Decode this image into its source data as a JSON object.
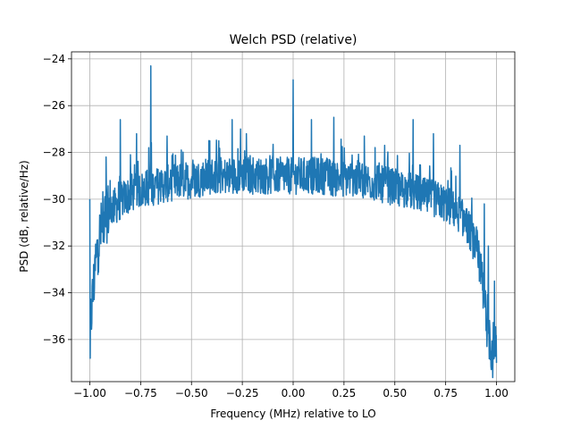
{
  "chart_data": {
    "type": "line",
    "title": "Welch PSD (relative)",
    "xlabel": "Frequency (MHz) relative to LO",
    "ylabel": "PSD (dB, relative/Hz)",
    "xlim": [
      -1.09,
      1.09
    ],
    "ylim": [
      -37.8,
      -23.7
    ],
    "grid": true,
    "xticks": [
      -1.0,
      -0.75,
      -0.5,
      -0.25,
      0.0,
      0.25,
      0.5,
      0.75,
      1.0
    ],
    "xtick_labels": [
      "−1.00",
      "−0.75",
      "−0.50",
      "−0.25",
      "0.00",
      "0.25",
      "0.50",
      "0.75",
      "1.00"
    ],
    "yticks": [
      -36,
      -34,
      -32,
      -30,
      -28,
      -26,
      -24
    ],
    "ytick_labels": [
      "−36",
      "−34",
      "−32",
      "−30",
      "−28",
      "−26",
      "−24"
    ],
    "color": "#1f77b4",
    "series": [
      {
        "x": [
          -1.0,
          -0.99,
          -0.98,
          -0.97,
          -0.96,
          -0.95,
          -0.94,
          -0.93,
          -0.92,
          -0.91,
          -0.9,
          -0.88,
          -0.86,
          -0.84,
          -0.82,
          -0.8,
          -0.78,
          -0.76,
          -0.74,
          -0.72,
          -0.7,
          -0.65,
          -0.6,
          -0.55,
          -0.5,
          -0.45,
          -0.4,
          -0.35,
          -0.3,
          -0.25,
          -0.2,
          -0.15,
          -0.1,
          -0.05,
          0.0,
          0.05,
          0.1,
          0.15,
          0.2,
          0.25,
          0.3,
          0.35,
          0.4,
          0.45,
          0.5,
          0.55,
          0.6,
          0.65,
          0.7,
          0.75,
          0.8,
          0.85,
          0.88,
          0.9,
          0.91,
          0.92,
          0.93,
          0.94,
          0.95,
          0.96,
          0.97,
          0.98,
          0.99,
          1.0
        ],
        "y": [
          -35.8,
          -34.6,
          -33.6,
          -32.6,
          -32.0,
          -31.5,
          -31.2,
          -30.9,
          -30.7,
          -30.5,
          -30.4,
          -30.3,
          -30.2,
          -30.0,
          -29.9,
          -29.8,
          -29.7,
          -29.6,
          -29.6,
          -29.5,
          -29.5,
          -29.4,
          -29.3,
          -29.2,
          -29.2,
          -29.1,
          -29.0,
          -29.0,
          -29.0,
          -28.9,
          -29.0,
          -29.0,
          -29.0,
          -29.0,
          -29.0,
          -29.0,
          -29.0,
          -29.0,
          -29.1,
          -29.1,
          -29.1,
          -29.2,
          -29.3,
          -29.4,
          -29.5,
          -29.6,
          -29.7,
          -29.9,
          -30.0,
          -30.2,
          -30.5,
          -31.0,
          -31.6,
          -32.3,
          -32.8,
          -33.3,
          -33.8,
          -34.3,
          -34.9,
          -35.5,
          -36.0,
          -36.4,
          -36.6,
          -36.8
        ]
      }
    ],
    "spikes": [
      {
        "x": -1.0,
        "y": -30.0
      },
      {
        "x": -0.998,
        "y": -36.8
      },
      {
        "x": -0.98,
        "y": -34.0
      },
      {
        "x": -0.92,
        "y": -28.2
      },
      {
        "x": -0.9,
        "y": -29.2
      },
      {
        "x": -0.85,
        "y": -26.6
      },
      {
        "x": -0.8,
        "y": -28.1
      },
      {
        "x": -0.77,
        "y": -27.2
      },
      {
        "x": -0.71,
        "y": -27.8
      },
      {
        "x": -0.7,
        "y": -24.3
      },
      {
        "x": -0.62,
        "y": -27.3
      },
      {
        "x": -0.55,
        "y": -27.9
      },
      {
        "x": -0.41,
        "y": -27.5
      },
      {
        "x": -0.3,
        "y": -26.6
      },
      {
        "x": -0.23,
        "y": -27.2
      },
      {
        "x": 0.0,
        "y": -24.9
      },
      {
        "x": 0.09,
        "y": -26.6
      },
      {
        "x": 0.2,
        "y": -26.5
      },
      {
        "x": 0.35,
        "y": -27.3
      },
      {
        "x": 0.45,
        "y": -27.7
      },
      {
        "x": 0.59,
        "y": -26.6
      },
      {
        "x": 0.69,
        "y": -27.2
      },
      {
        "x": 0.82,
        "y": -27.7
      },
      {
        "x": 0.94,
        "y": -30.2
      },
      {
        "x": 0.96,
        "y": -32.0
      },
      {
        "x": 0.99,
        "y": -33.5
      },
      {
        "x": 1.0,
        "y": -37.0
      }
    ]
  }
}
